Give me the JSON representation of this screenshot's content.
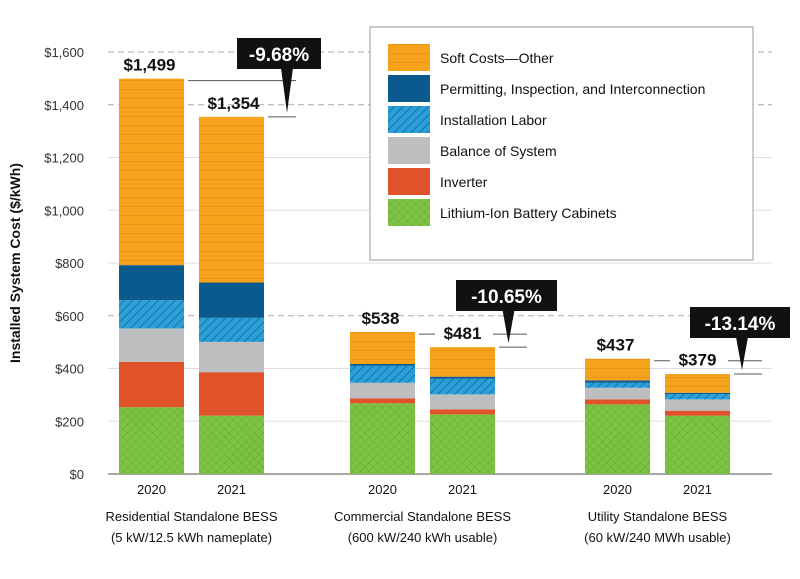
{
  "chart_data": {
    "type": "stacked-bar",
    "ylabel": "Installed System Cost ($/kWh)",
    "ylim": [
      0,
      1600
    ],
    "yticks": [
      "$0",
      "$200",
      "$400",
      "$600",
      "$800",
      "$1,000",
      "$1,200",
      "$1,400",
      "$1,600"
    ],
    "grid": true,
    "legend_position": "top-right",
    "series": [
      {
        "name": "Lithium-Ion Battery Cabinets",
        "color": "#7dc242",
        "values": [
          253,
          221,
          268,
          226,
          264,
          221
        ]
      },
      {
        "name": "Inverter",
        "color": "#e0522a",
        "values": [
          172,
          165,
          19,
          19,
          19,
          19
        ]
      },
      {
        "name": "Balance of System",
        "color": "#bcbec0",
        "values": [
          127,
          115,
          59,
          57,
          44,
          43
        ]
      },
      {
        "name": "Installation Labor",
        "color": "#2a9fd8",
        "values": [
          107,
          91,
          64,
          59,
          19,
          20
        ]
      },
      {
        "name": "Permitting, Inspection, and Interconnection",
        "color": "#0b5a8e",
        "values": [
          133,
          134,
          7,
          8,
          9,
          5
        ]
      },
      {
        "name": "Soft Costs—Other",
        "color": "#f7a21b",
        "values": [
          707,
          628,
          121,
          112,
          82,
          71
        ]
      }
    ],
    "bars": [
      {
        "year": "2020",
        "total": "$1,499"
      },
      {
        "year": "2021",
        "total": "$1,354"
      },
      {
        "year": "2020",
        "total": "$538"
      },
      {
        "year": "2021",
        "total": "$481"
      },
      {
        "year": "2020",
        "total": "$437"
      },
      {
        "year": "2021",
        "total": "$379"
      }
    ],
    "groups": [
      {
        "line1": "Residential Standalone BESS",
        "line2": "(5 kW/12.5 kWh nameplate)",
        "change": "-9.68%"
      },
      {
        "line1": "Commercial Standalone BESS",
        "line2": "(600 kW/240 kWh usable)",
        "change": "-10.65%"
      },
      {
        "line1": "Utility Standalone BESS",
        "line2": "(60 kW/240 MWh usable)",
        "change": "-13.14%"
      }
    ]
  }
}
